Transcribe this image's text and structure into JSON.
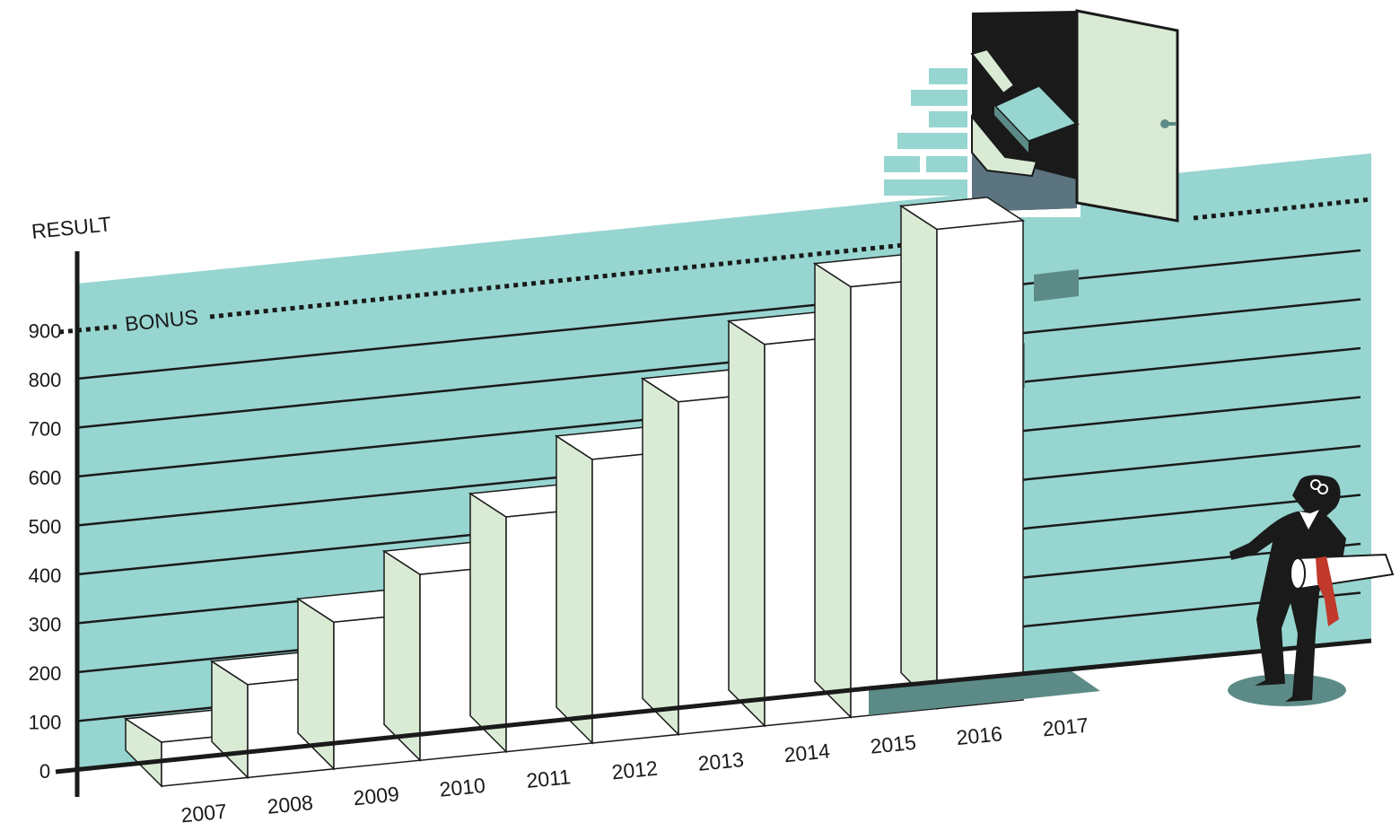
{
  "colors": {
    "wall": "#97d5d0",
    "wall_shadow": "#5c8b87",
    "step_front": "#ffffff",
    "step_side": "#d9ebd4",
    "ink": "#1a1a1a",
    "door": "#d9ebd4",
    "brick": "#97d5d0",
    "tie": "#c0392b"
  },
  "chart_data": {
    "type": "bar",
    "title": "",
    "xlabel": "",
    "ylabel": "RESULT",
    "categories": [
      "2007",
      "2008",
      "2009",
      "2010",
      "2011",
      "2012",
      "2013",
      "2014",
      "2015",
      "2016",
      "2017"
    ],
    "values": [
      90,
      190,
      300,
      380,
      480,
      580,
      680,
      780,
      880,
      980,
      null
    ],
    "yticks": [
      "0",
      "100",
      "200",
      "300",
      "400",
      "500",
      "600",
      "700",
      "800",
      "900"
    ],
    "ylim": [
      0,
      1000
    ],
    "grid": true,
    "annotations": [
      {
        "label": "BONUS",
        "value": 900,
        "style": "dotted-line"
      }
    ]
  }
}
